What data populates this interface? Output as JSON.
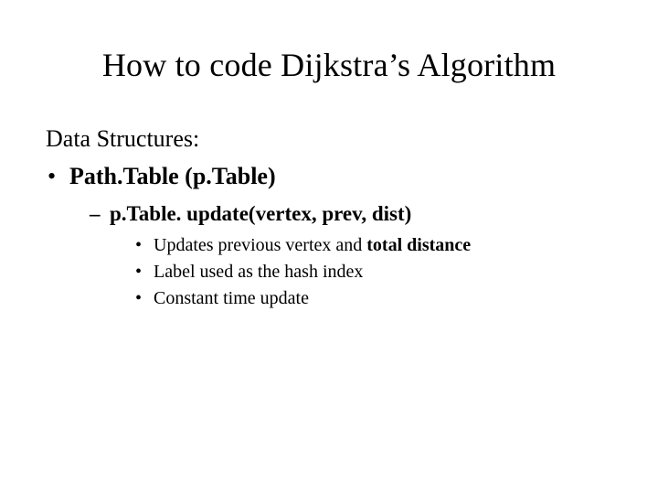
{
  "title": "How to code Dijkstra’s Algorithm",
  "body": {
    "line1": "Data Structures:",
    "line2_prefix": "Path.Table (p.Table)",
    "sub1": "p.Table. update(vertex, prev, dist)",
    "sub1_items": {
      "a_prefix": "Updates previous vertex and ",
      "a_bold": "total distance",
      "b": "Label used as the hash index",
      "c": "Constant time update"
    }
  },
  "styling": {
    "background_color": "#ffffff",
    "text_color": "#000000",
    "font_family": "Times New Roman",
    "title_fontsize": 36,
    "body_fontsize": 26,
    "lvl2_fontsize": 23,
    "lvl3_fontsize": 20,
    "slide_width": 720,
    "slide_height": 540
  }
}
